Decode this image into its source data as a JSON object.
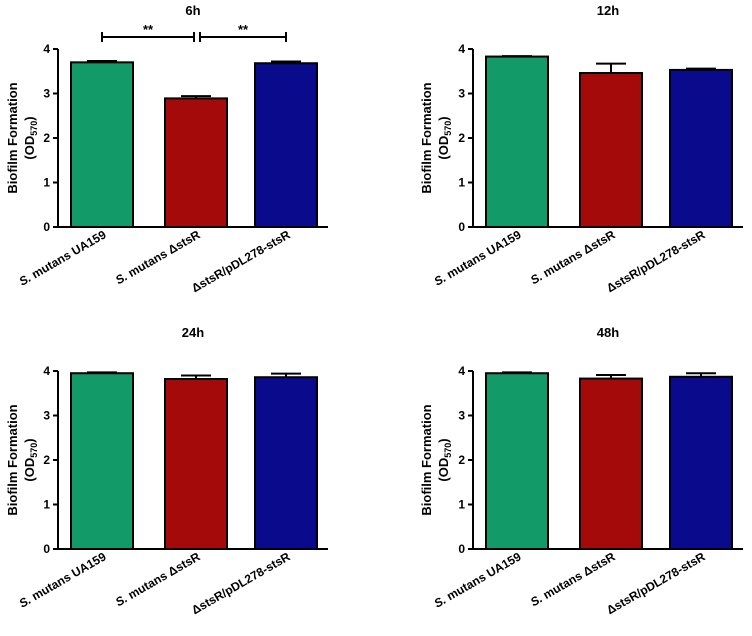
{
  "chart_data": [
    {
      "type": "bar",
      "title": "6h",
      "ylabel_main": "Biofilm Formation",
      "ylabel_unit": "(OD",
      "ylabel_sub": "570",
      "ylabel_close": ")",
      "ylim": [
        0,
        4
      ],
      "yticks": [
        "0",
        "1",
        "2",
        "3",
        "4"
      ],
      "categories": [
        {
          "prefix": "S. ",
          "label": "mutans UA159"
        },
        {
          "prefix": "S. ",
          "label": "mutans ΔstsR"
        },
        {
          "prefix": "",
          "label": "ΔstsR/pDL278-stsR"
        }
      ],
      "values": [
        3.7,
        2.89,
        3.68
      ],
      "errors": [
        0.03,
        0.05,
        0.04
      ],
      "colors": [
        "#129A68",
        "#A50A0A",
        "#0A0A8C"
      ],
      "significance": [
        {
          "from": 0,
          "to": 1,
          "label": "**"
        },
        {
          "from": 1,
          "to": 2,
          "label": "**"
        }
      ]
    },
    {
      "type": "bar",
      "title": "12h",
      "ylabel_main": "Biofilm Formation",
      "ylabel_unit": "(OD",
      "ylabel_sub": "570",
      "ylabel_close": ")",
      "ylim": [
        0,
        4
      ],
      "yticks": [
        "0",
        "1",
        "2",
        "3",
        "4"
      ],
      "categories": [
        {
          "prefix": "S. ",
          "label": "mutans UA159"
        },
        {
          "prefix": "S. ",
          "label": "mutans ΔstsR"
        },
        {
          "prefix": "",
          "label": "ΔstsR/pDL278-stsR"
        }
      ],
      "values": [
        3.83,
        3.46,
        3.53
      ],
      "errors": [
        0.01,
        0.21,
        0.03
      ],
      "colors": [
        "#129A68",
        "#A50A0A",
        "#0A0A8C"
      ],
      "significance": []
    },
    {
      "type": "bar",
      "title": "24h",
      "ylabel_main": "Biofilm Formation",
      "ylabel_unit": "(OD",
      "ylabel_sub": "570",
      "ylabel_close": ")",
      "ylim": [
        0,
        4
      ],
      "yticks": [
        "0",
        "1",
        "2",
        "3",
        "4"
      ],
      "categories": [
        {
          "prefix": "S. ",
          "label": "mutans UA159"
        },
        {
          "prefix": "S. ",
          "label": "mutans ΔstsR"
        },
        {
          "prefix": "",
          "label": "ΔstsR/pDL278-stsR"
        }
      ],
      "values": [
        3.95,
        3.82,
        3.86
      ],
      "errors": [
        0.02,
        0.08,
        0.08
      ],
      "colors": [
        "#129A68",
        "#A50A0A",
        "#0A0A8C"
      ],
      "significance": []
    },
    {
      "type": "bar",
      "title": "48h",
      "ylabel_main": "Biofilm Formation",
      "ylabel_unit": "(OD",
      "ylabel_sub": "570",
      "ylabel_close": ")",
      "ylim": [
        0,
        4
      ],
      "yticks": [
        "0",
        "1",
        "2",
        "3",
        "4"
      ],
      "categories": [
        {
          "prefix": "S. ",
          "label": "mutans UA159"
        },
        {
          "prefix": "S. ",
          "label": "mutans ΔstsR"
        },
        {
          "prefix": "",
          "label": "ΔstsR/pDL278-stsR"
        }
      ],
      "values": [
        3.95,
        3.83,
        3.87
      ],
      "errors": [
        0.02,
        0.08,
        0.08
      ],
      "colors": [
        "#129A68",
        "#A50A0A",
        "#0A0A8C"
      ],
      "significance": []
    }
  ]
}
